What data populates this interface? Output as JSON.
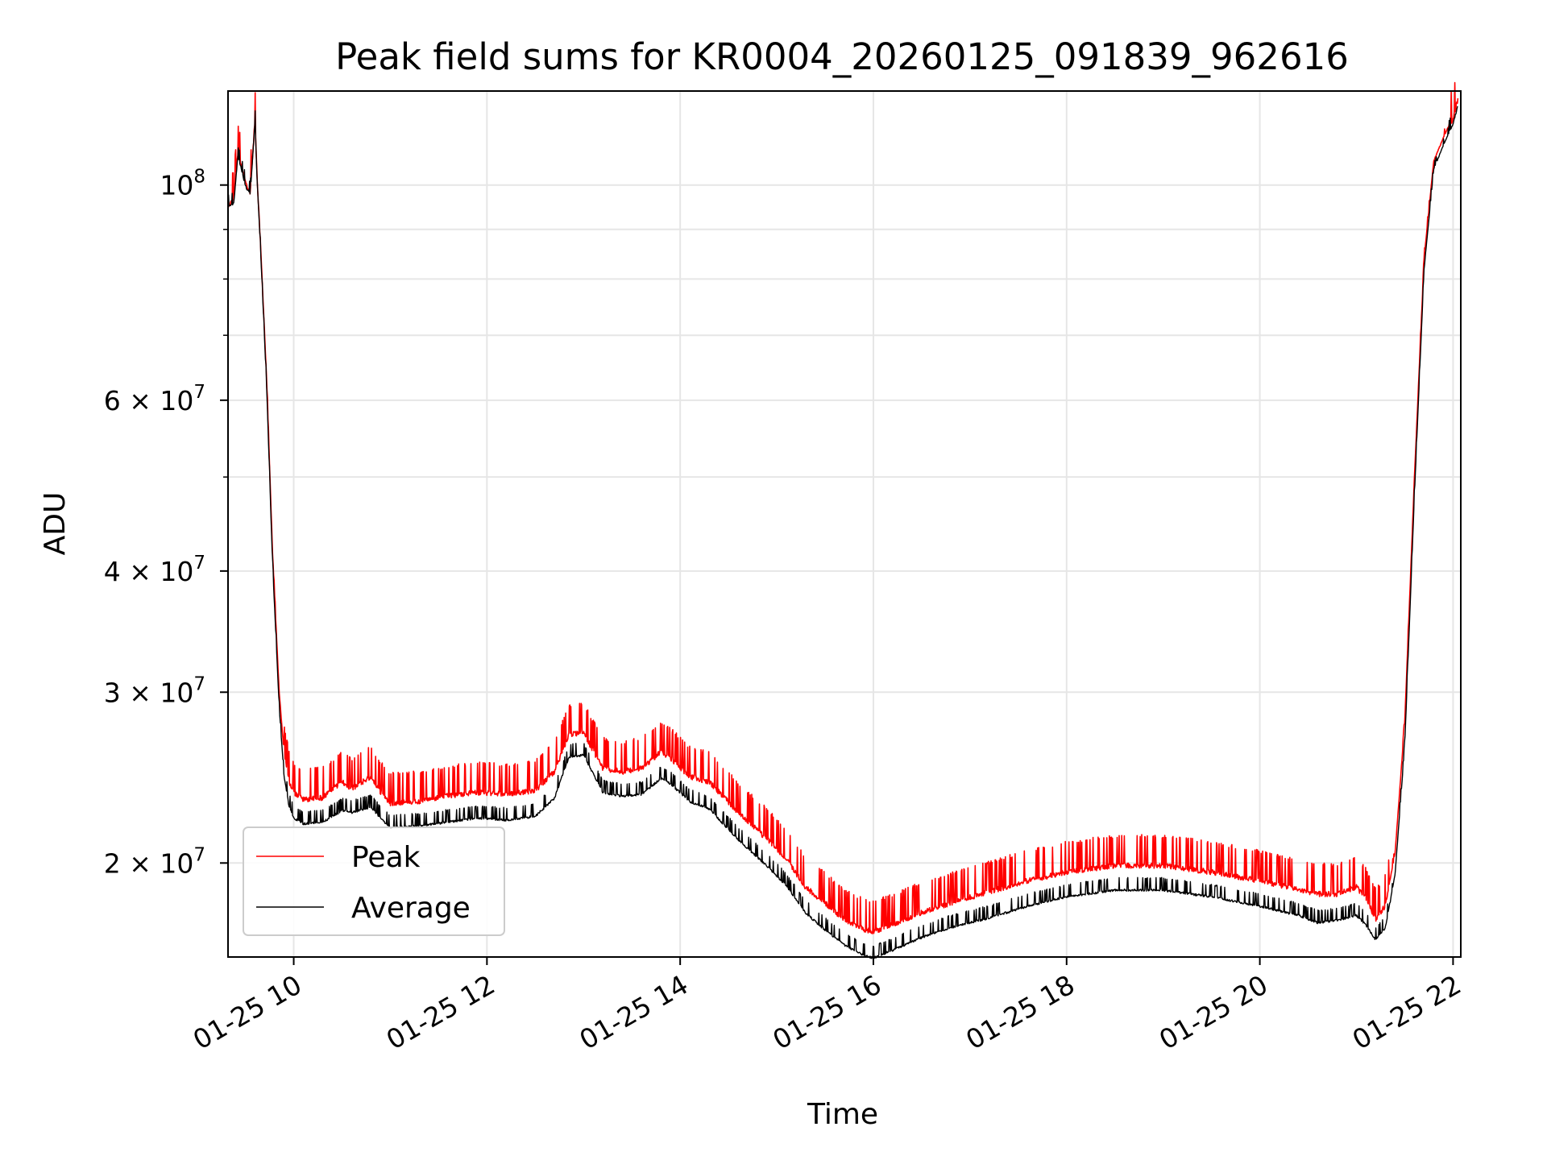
{
  "chart_data": {
    "type": "line",
    "title": "Peak field sums for KR0004_20260125_091839_962616",
    "xlabel": "Time",
    "ylabel": "ADU",
    "yscale": "log",
    "x_unit": "hours since 2026-01-25 00:00",
    "xlim": [
      9.32,
      22.08
    ],
    "ylim": [
      16000000,
      125000000
    ],
    "grid": true,
    "legend_position": "lower-left",
    "x_ticks": [
      {
        "value": 10,
        "label": "01-25 10"
      },
      {
        "value": 12,
        "label": "01-25 12"
      },
      {
        "value": 14,
        "label": "01-25 14"
      },
      {
        "value": 16,
        "label": "01-25 16"
      },
      {
        "value": 18,
        "label": "01-25 18"
      },
      {
        "value": 20,
        "label": "01-25 20"
      },
      {
        "value": 22,
        "label": "01-25 22"
      }
    ],
    "y_major_ticks": [
      {
        "value": 20000000,
        "mantissa": "2",
        "base": "10",
        "exp": "7"
      },
      {
        "value": 30000000,
        "mantissa": "3",
        "base": "10",
        "exp": "7"
      },
      {
        "value": 40000000,
        "mantissa": "4",
        "base": "10",
        "exp": "7"
      },
      {
        "value": 60000000,
        "mantissa": "6",
        "base": "10",
        "exp": "7"
      },
      {
        "value": 100000000,
        "mantissa": "",
        "base": "10",
        "exp": "8"
      }
    ],
    "y_minor_ticks": [
      50000000,
      70000000,
      80000000,
      90000000
    ],
    "series": [
      {
        "name": "Peak",
        "color": "#ff0000",
        "noise_band": 0.05,
        "x": [
          9.32,
          9.38,
          9.42,
          9.45,
          9.5,
          9.55,
          9.6,
          9.62,
          9.65,
          9.72,
          9.78,
          9.85,
          9.9,
          9.95,
          10.0,
          10.1,
          10.3,
          10.5,
          10.6,
          10.8,
          10.9,
          11.0,
          11.3,
          11.6,
          11.9,
          12.2,
          12.5,
          12.7,
          12.85,
          13.0,
          13.2,
          13.4,
          13.6,
          13.8,
          13.9,
          14.1,
          14.3,
          14.6,
          14.9,
          15.1,
          15.3,
          15.5,
          15.7,
          15.9,
          16.0,
          16.2,
          16.5,
          16.8,
          17.2,
          17.6,
          18.0,
          18.5,
          19.0,
          19.5,
          20.0,
          20.4,
          20.6,
          20.8,
          21.0,
          21.1,
          21.2,
          21.3,
          21.4,
          21.5,
          21.6,
          21.7,
          21.8,
          21.9,
          22.0,
          22.05
        ],
        "y": [
          96000000,
          97000000,
          108000000,
          106000000,
          101000000,
          99000000,
          118000000,
          103000000,
          90000000,
          63000000,
          42000000,
          30000000,
          26000000,
          24500000,
          23800000,
          23400000,
          23500000,
          24400000,
          24000000,
          24700000,
          23800000,
          23200000,
          23300000,
          23600000,
          23800000,
          23700000,
          23900000,
          25000000,
          27300000,
          27400000,
          25200000,
          25000000,
          25200000,
          26200000,
          25800000,
          24700000,
          24400000,
          22700000,
          21300000,
          20300000,
          19000000,
          18300000,
          17600000,
          17200000,
          17100000,
          17400000,
          17900000,
          18300000,
          18800000,
          19300000,
          19700000,
          20000000,
          20000000,
          19700000,
          19300000,
          18900000,
          18700000,
          18700000,
          19000000,
          18500000,
          17600000,
          18200000,
          20500000,
          28000000,
          50000000,
          84000000,
          106000000,
          112000000,
          118000000,
          123000000
        ]
      },
      {
        "name": "Average",
        "color": "#000000",
        "noise_band": 0.02,
        "x": [
          9.32,
          9.38,
          9.42,
          9.45,
          9.5,
          9.55,
          9.6,
          9.62,
          9.65,
          9.72,
          9.78,
          9.85,
          9.9,
          9.95,
          10.0,
          10.1,
          10.3,
          10.5,
          10.6,
          10.8,
          10.9,
          11.0,
          11.3,
          11.6,
          11.9,
          12.2,
          12.5,
          12.7,
          12.85,
          13.0,
          13.2,
          13.4,
          13.6,
          13.8,
          13.9,
          14.1,
          14.3,
          14.6,
          14.9,
          15.1,
          15.3,
          15.5,
          15.7,
          15.9,
          16.0,
          16.2,
          16.5,
          16.8,
          17.2,
          17.6,
          18.0,
          18.5,
          19.0,
          19.5,
          20.0,
          20.4,
          20.6,
          20.8,
          21.0,
          21.1,
          21.2,
          21.3,
          21.4,
          21.5,
          21.6,
          21.7,
          21.8,
          21.9,
          22.0,
          22.05
        ],
        "y": [
          95000000,
          96000000,
          107000000,
          105000000,
          100000000,
          98000000,
          117000000,
          102000000,
          89000000,
          62000000,
          41000000,
          29000000,
          24600000,
          23000000,
          22300000,
          22000000,
          22100000,
          22700000,
          22600000,
          22900000,
          22300000,
          21800000,
          21900000,
          22100000,
          22300000,
          22200000,
          22400000,
          23400000,
          25800000,
          25900000,
          23700000,
          23500000,
          23600000,
          24500000,
          24200000,
          23200000,
          22800000,
          21200000,
          19900000,
          19000000,
          17800000,
          17100000,
          16500000,
          16100000,
          16000000,
          16300000,
          16800000,
          17200000,
          17600000,
          18100000,
          18500000,
          18800000,
          18800000,
          18500000,
          18100000,
          17700000,
          17400000,
          17500000,
          17700000,
          17300000,
          16700000,
          17200000,
          19500000,
          26500000,
          48000000,
          82000000,
          104000000,
          110000000,
          116000000,
          121000000
        ]
      }
    ]
  }
}
